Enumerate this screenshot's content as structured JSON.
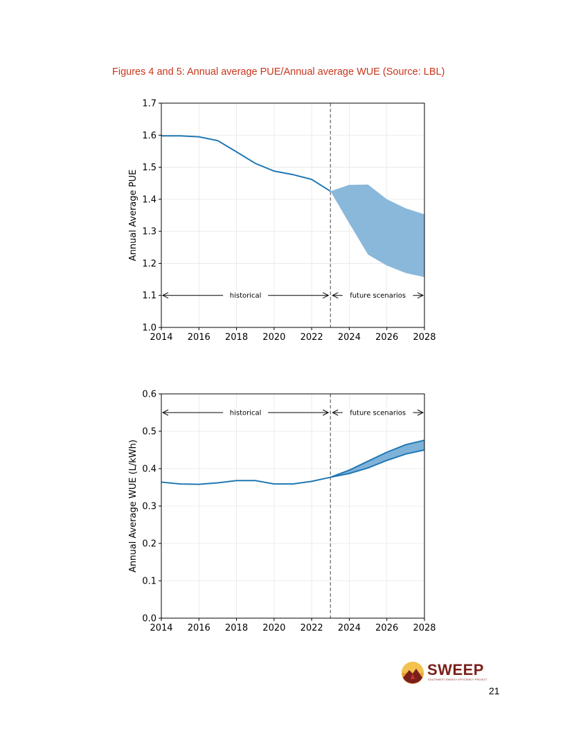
{
  "page": {
    "title": "Figures 4 and 5: Annual average PUE/Annual average WUE (Source: LBL)",
    "page_number": "21",
    "logo": {
      "name": "SWEEP",
      "tagline": "SOUTHWEST ENERGY EFFICIENCY PROJECT"
    }
  },
  "chart_data": [
    {
      "type": "line",
      "id": "pue",
      "ylabel": "Annual Average PUE",
      "xlabel": "",
      "xlim": [
        2014,
        2028
      ],
      "ylim": [
        1.0,
        1.7
      ],
      "xticks": [
        "2014",
        "2016",
        "2018",
        "2020",
        "2022",
        "2024",
        "2026",
        "2028"
      ],
      "yticks": [
        "1.0",
        "1.1",
        "1.2",
        "1.3",
        "1.4",
        "1.5",
        "1.6",
        "1.7"
      ],
      "grid": true,
      "divider_x": 2023,
      "historical": {
        "x": [
          2014,
          2015,
          2016,
          2017,
          2018,
          2019,
          2020,
          2021,
          2022,
          2023
        ],
        "y": [
          1.598,
          1.598,
          1.595,
          1.583,
          1.548,
          1.512,
          1.488,
          1.477,
          1.462,
          1.425
        ]
      },
      "scenarios": {
        "x": [
          2023,
          2024,
          2025,
          2026,
          2027,
          2028
        ],
        "upper": [
          1.425,
          1.445,
          1.446,
          1.4,
          1.372,
          1.353
        ],
        "lower": [
          1.425,
          1.325,
          1.227,
          1.193,
          1.17,
          1.157
        ]
      },
      "annotations": {
        "historical_label": "historical",
        "future_label": "future scenarios",
        "y": 1.1
      },
      "colors": {
        "line": "#1f77b4",
        "band_fill": "#8ab8db"
      }
    },
    {
      "type": "line",
      "id": "wue",
      "ylabel": "Annual Average WUE (L/kWh)",
      "xlabel": "",
      "xlim": [
        2014,
        2028
      ],
      "ylim": [
        0.0,
        0.6
      ],
      "xticks": [
        "2014",
        "2016",
        "2018",
        "2020",
        "2022",
        "2024",
        "2026",
        "2028"
      ],
      "yticks": [
        "0.0",
        "0.1",
        "0.2",
        "0.3",
        "0.4",
        "0.5",
        "0.6"
      ],
      "grid": true,
      "divider_x": 2023,
      "historical": {
        "x": [
          2014,
          2015,
          2016,
          2017,
          2018,
          2019,
          2020,
          2021,
          2022,
          2023
        ],
        "y": [
          0.364,
          0.359,
          0.358,
          0.362,
          0.368,
          0.368,
          0.359,
          0.359,
          0.366,
          0.377
        ]
      },
      "scenarios": {
        "x": [
          2023,
          2024,
          2025,
          2026,
          2027,
          2028
        ],
        "upper": [
          0.377,
          0.396,
          0.42,
          0.444,
          0.464,
          0.476
        ],
        "lower": [
          0.377,
          0.387,
          0.402,
          0.422,
          0.439,
          0.45
        ]
      },
      "annotations": {
        "historical_label": "historical",
        "future_label": "future scenarios",
        "y": 0.55
      },
      "colors": {
        "line": "#1f77b4",
        "band_fill": "#7fb2d8"
      }
    }
  ]
}
